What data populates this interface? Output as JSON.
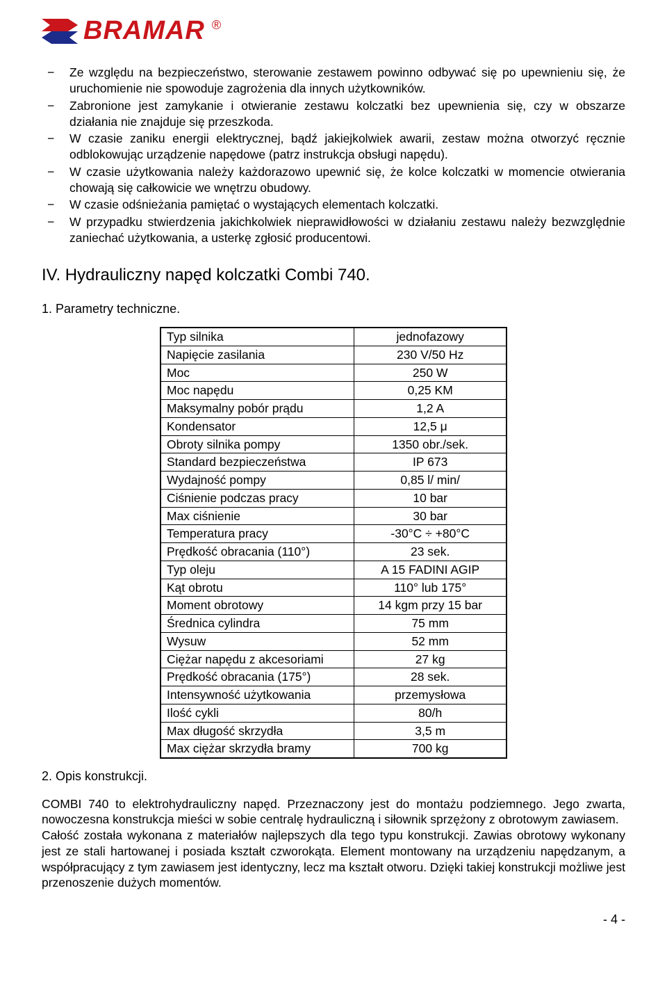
{
  "logo": {
    "text": "BRAMAR",
    "reg": "®",
    "arrow_top_color": "#c9151b",
    "arrow_bottom_color": "#1d2b8a"
  },
  "bullets": [
    "Ze względu na bezpieczeństwo, sterowanie zestawem powinno odbywać się po upewnieniu się, że uruchomienie nie spowoduje zagrożenia dla innych użytkowników.",
    "Zabronione jest zamykanie i otwieranie zestawu kolczatki bez upewnienia się, czy w obszarze działania nie znajduje się przeszkoda.",
    "W czasie zaniku energii elektrycznej, bądź jakiejkolwiek awarii, zestaw można otworzyć ręcznie odblokowując urządzenie napędowe (patrz instrukcja obsługi napędu).",
    "W czasie użytkowania należy każdorazowo upewnić się, że kolce kolczatki w momencie otwierania chowają się całkowicie we wnętrzu obudowy.",
    "W czasie odśnieżania pamiętać o wystających elementach kolczatki.",
    "W przypadku stwierdzenia jakichkolwiek nieprawidłowości w działaniu zestawu należy bezwzględnie zaniechać użytkowania, a usterkę zgłosić producentowi."
  ],
  "section_title": "IV. Hydrauliczny napęd kolczatki Combi 740.",
  "sub1": "1. Parametry techniczne.",
  "table": {
    "rows": [
      [
        "Typ silnika",
        "jednofazowy"
      ],
      [
        "Napięcie zasilania",
        "230 V/50 Hz"
      ],
      [
        "Moc",
        "250 W"
      ],
      [
        "Moc napędu",
        "0,25 KM"
      ],
      [
        "Maksymalny pobór prądu",
        "1,2 A"
      ],
      [
        "Kondensator",
        "12,5 μ"
      ],
      [
        "Obroty silnika pompy",
        "1350 obr./sek."
      ],
      [
        "Standard bezpieczeństwa",
        "IP 673"
      ],
      [
        "Wydajność pompy",
        "0,85 l/ min/"
      ],
      [
        "Ciśnienie podczas pracy",
        "10 bar"
      ],
      [
        "Max ciśnienie",
        "30 bar"
      ],
      [
        "Temperatura pracy",
        "-30°C ÷ +80°C"
      ],
      [
        "Prędkość obracania (110°)",
        "23 sek."
      ],
      [
        "Typ oleju",
        "A 15 FADINI AGIP"
      ],
      [
        "Kąt obrotu",
        "110° lub 175°"
      ],
      [
        "Moment obrotowy",
        "14 kgm przy 15 bar"
      ],
      [
        "Średnica cylindra",
        "75 mm"
      ],
      [
        "Wysuw",
        "52 mm"
      ],
      [
        "Ciężar napędu z akcesoriami",
        "27 kg"
      ],
      [
        "Prędkość obracania (175°)",
        "28 sek."
      ],
      [
        "Intensywność użytkowania",
        "przemysłowa"
      ],
      [
        "Ilość cykli",
        "80/h"
      ],
      [
        "Max długość skrzydła",
        "3,5 m"
      ],
      [
        "Max ciężar skrzydła bramy",
        "700 kg"
      ]
    ]
  },
  "sub2": "2. Opis konstrukcji.",
  "body": "COMBI 740 to elektrohydrauliczny napęd. Przeznaczony jest do montażu podziemnego. Jego zwarta, nowoczesna konstrukcja mieści w sobie centralę hydrauliczną i siłownik sprzężony z obrotowym zawiasem.\nCałość została wykonana z materiałów najlepszych dla tego typu konstrukcji. Zawias obrotowy wykonany jest ze stali hartowanej i posiada kształt czworokąta. Element montowany na urządzeniu napędzanym, a współpracujący z tym zawiasem jest identyczny, lecz ma kształt otworu. Dzięki takiej konstrukcji możliwe jest przenoszenie dużych momentów.",
  "pagenum": "- 4 -"
}
